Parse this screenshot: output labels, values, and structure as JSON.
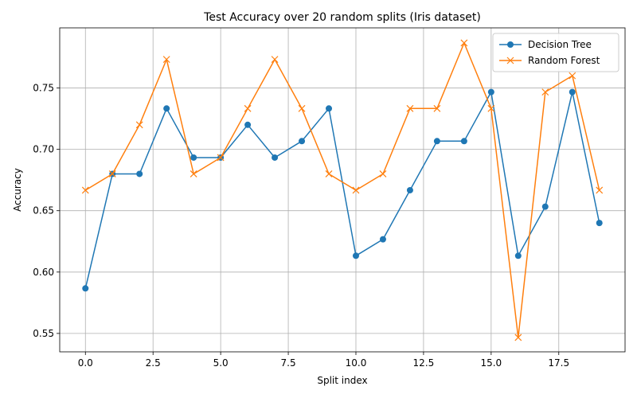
{
  "chart_data": {
    "type": "line",
    "title": "Test Accuracy over 20 random splits (Iris dataset)",
    "xlabel": "Split index",
    "ylabel": "Accuracy",
    "xlim": [
      -0.95,
      19.95
    ],
    "ylim": [
      0.535,
      0.799
    ],
    "xticks": [
      0.0,
      2.5,
      5.0,
      7.5,
      10.0,
      12.5,
      15.0,
      17.5
    ],
    "xtick_labels": [
      "0.0",
      "2.5",
      "5.0",
      "7.5",
      "10.0",
      "12.5",
      "15.0",
      "17.5"
    ],
    "yticks": [
      0.55,
      0.6,
      0.65,
      0.7,
      0.75
    ],
    "ytick_labels": [
      "0.55",
      "0.60",
      "0.65",
      "0.70",
      "0.75"
    ],
    "grid": true,
    "legend_position": "top-right",
    "x": [
      0,
      1,
      2,
      3,
      4,
      5,
      6,
      7,
      8,
      9,
      10,
      11,
      12,
      13,
      14,
      15,
      16,
      17,
      18,
      19
    ],
    "series": [
      {
        "name": "Decision Tree",
        "color": "#1f77b4",
        "marker": "circle",
        "values": [
          0.5867,
          0.68,
          0.68,
          0.7333,
          0.6933,
          0.6933,
          0.72,
          0.6933,
          0.7067,
          0.7333,
          0.6133,
          0.6267,
          0.6667,
          0.7067,
          0.7067,
          0.7467,
          0.6133,
          0.6533,
          0.7467,
          0.64
        ]
      },
      {
        "name": "Random Forest",
        "color": "#ff7f0e",
        "marker": "x",
        "values": [
          0.6667,
          0.68,
          0.72,
          0.7733,
          0.68,
          0.6933,
          0.7333,
          0.7733,
          0.7333,
          0.68,
          0.6667,
          0.68,
          0.7333,
          0.7333,
          0.7867,
          0.7333,
          0.5467,
          0.7467,
          0.76,
          0.6667
        ]
      }
    ]
  }
}
